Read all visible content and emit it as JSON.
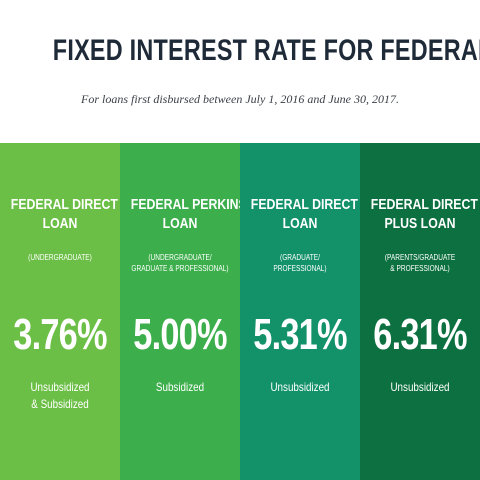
{
  "header": {
    "title": "FIXED INTEREST RATE FOR FEDERAL LOANS",
    "subtitle": "For loans first disbursed between July 1, 2016 and June 30, 2017."
  },
  "columns": [
    {
      "name_lines": [
        "FEDERAL DIRECT",
        "LOAN"
      ],
      "sub_lines": [
        "(UNDERGRADUATE)"
      ],
      "rate": "3.76%",
      "type_lines": [
        "Unsubsidized",
        "& Subsidized"
      ],
      "color": "#6cbf46"
    },
    {
      "name_lines": [
        "FEDERAL PERKINS",
        "LOAN"
      ],
      "sub_lines": [
        "(UNDERGRADUATE/",
        "GRADUATE & PROFESSIONAL)"
      ],
      "rate": "5.00%",
      "type_lines": [
        "Subsidized"
      ],
      "color": "#3cae4b"
    },
    {
      "name_lines": [
        "FEDERAL DIRECT",
        "LOAN"
      ],
      "sub_lines": [
        "(GRADUATE/",
        "PROFESSIONAL)"
      ],
      "rate": "5.31%",
      "type_lines": [
        "Unsubsidized"
      ],
      "color": "#139169"
    },
    {
      "name_lines": [
        "FEDERAL DIRECT",
        "PLUS LOAN"
      ],
      "sub_lines": [
        "(PARENTS/GRADUATE",
        "& PROFESSIONAL)"
      ],
      "rate": "6.31%",
      "type_lines": [
        "Unsubsidized"
      ],
      "color": "#0d7040"
    }
  ]
}
